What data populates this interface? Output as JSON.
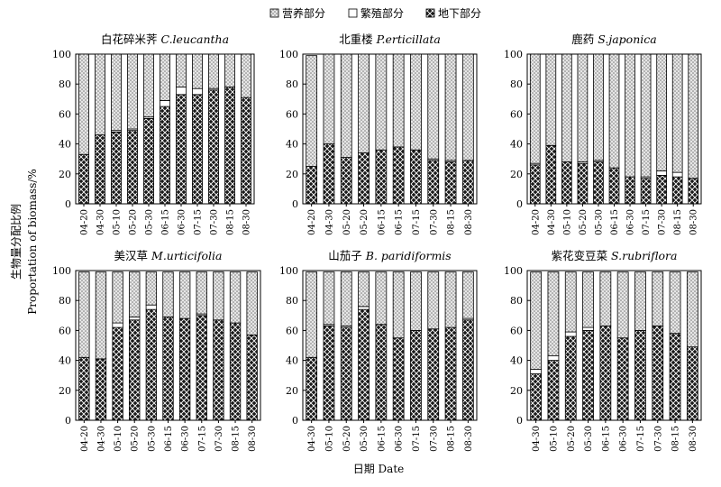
{
  "legend": {
    "items": [
      {
        "label": "营养部分",
        "pattern": "veg"
      },
      {
        "label": "繁殖部分",
        "pattern": "rep"
      },
      {
        "label": "地下部分",
        "pattern": "und"
      }
    ]
  },
  "axes": {
    "ylabel_cn": "生物量分配比例",
    "ylabel_en": "Proportation of biomass/%",
    "xlabel": "日期 Date"
  },
  "colors": {
    "stroke": "#000000",
    "background": "#ffffff",
    "underground_fill": "#1a1a1a",
    "vegetative_fill": "#d9d9d9"
  },
  "chart_data": [
    {
      "type": "bar",
      "stacked": true,
      "title_cn": "白花碎米荠",
      "title_en": "C.leucantha",
      "categories": [
        "04-20",
        "04-30",
        "05-10",
        "05-20",
        "05-30",
        "06-15",
        "06-30",
        "07-15",
        "07-30",
        "08-15",
        "08-30"
      ],
      "ylim": [
        0,
        100
      ],
      "yticks": [
        0,
        20,
        40,
        60,
        80,
        100
      ],
      "series": [
        {
          "name": "地下部分",
          "values": [
            33,
            46,
            48,
            49,
            57,
            65,
            73,
            73,
            76,
            78,
            71
          ]
        },
        {
          "name": "繁殖部分",
          "values": [
            0,
            0,
            1,
            1,
            1,
            4,
            5,
            4,
            1,
            0,
            0
          ]
        },
        {
          "name": "营养部分",
          "values": [
            67,
            54,
            51,
            50,
            42,
            31,
            22,
            23,
            23,
            22,
            29
          ]
        }
      ]
    },
    {
      "type": "bar",
      "stacked": true,
      "title_cn": "北重楼",
      "title_en": "P.erticillata",
      "categories": [
        "04-20",
        "04-30",
        "05-20",
        "05-20",
        "06-15",
        "06-15",
        "07-15",
        "07-30",
        "08-15",
        "08-30"
      ],
      "ylim": [
        0,
        100
      ],
      "yticks": [
        0,
        20,
        40,
        60,
        80,
        100
      ],
      "series": [
        {
          "name": "地下部分",
          "values": [
            25,
            40,
            31,
            34,
            36,
            38,
            36,
            29,
            28,
            29
          ]
        },
        {
          "name": "繁殖部分",
          "values": [
            0,
            0,
            0,
            0,
            0,
            0,
            0,
            1,
            1,
            0
          ]
        },
        {
          "name": "营养部分",
          "values": [
            74,
            60,
            69,
            66,
            64,
            62,
            64,
            70,
            71,
            71
          ]
        }
      ]
    },
    {
      "type": "bar",
      "stacked": true,
      "title_cn": "鹿药",
      "title_en": "S.japonica",
      "categories": [
        "04-20",
        "04-30",
        "05-10",
        "05-20",
        "05-30",
        "06-15",
        "06-30",
        "07-15",
        "07-30",
        "08-15",
        "08-30"
      ],
      "ylim": [
        0,
        100
      ],
      "yticks": [
        0,
        20,
        40,
        60,
        80,
        100
      ],
      "series": [
        {
          "name": "地下部分",
          "values": [
            26,
            39,
            28,
            27,
            28,
            24,
            18,
            17,
            19,
            18,
            17
          ]
        },
        {
          "name": "繁殖部分",
          "values": [
            1,
            0,
            0,
            1,
            1,
            0,
            0,
            1,
            3,
            3,
            0
          ]
        },
        {
          "name": "营养部分",
          "values": [
            73,
            61,
            72,
            72,
            71,
            76,
            82,
            82,
            78,
            79,
            83
          ]
        }
      ]
    },
    {
      "type": "bar",
      "stacked": true,
      "title_cn": "美汉草",
      "title_en": "M.urticifolia",
      "categories": [
        "04-20",
        "04-30",
        "05-10",
        "05-20",
        "05-30",
        "06-15",
        "06-30",
        "07-15",
        "07-30",
        "08-15",
        "08-30"
      ],
      "ylim": [
        0,
        100
      ],
      "yticks": [
        0,
        20,
        40,
        60,
        80,
        100
      ],
      "series": [
        {
          "name": "地下部分",
          "values": [
            42,
            41,
            62,
            67,
            74,
            69,
            68,
            70,
            67,
            65,
            57
          ]
        },
        {
          "name": "繁殖部分",
          "values": [
            0,
            0,
            3,
            2,
            3,
            0,
            0,
            1,
            0,
            0,
            0
          ]
        },
        {
          "name": "营养部分",
          "values": [
            57,
            58,
            34,
            30,
            22,
            30,
            31,
            28,
            32,
            34,
            42
          ]
        }
      ]
    },
    {
      "type": "bar",
      "stacked": true,
      "title_cn": "山茄子",
      "title_en": "B. paridiformis",
      "categories": [
        "04-30",
        "05-10",
        "05-20",
        "05-30",
        "06-15",
        "06-30",
        "07-15",
        "07-30",
        "08-15",
        "08-30"
      ],
      "ylim": [
        0,
        100
      ],
      "yticks": [
        0,
        20,
        40,
        60,
        80,
        100
      ],
      "series": [
        {
          "name": "地下部分",
          "values": [
            42,
            63,
            62,
            74,
            64,
            55,
            60,
            61,
            62,
            67
          ]
        },
        {
          "name": "繁殖部分",
          "values": [
            0,
            1,
            1,
            2,
            0,
            0,
            0,
            0,
            0,
            1
          ]
        },
        {
          "name": "营养部分",
          "values": [
            57,
            35,
            36,
            23,
            35,
            44,
            39,
            38,
            37,
            31
          ]
        }
      ]
    },
    {
      "type": "bar",
      "stacked": true,
      "title_cn": "紫花变豆菜",
      "title_en": "S.rubriflora",
      "categories": [
        "04-30",
        "05-10",
        "05-20",
        "05-30",
        "06-15",
        "06-30",
        "07-15",
        "07-30",
        "08-15",
        "08-30"
      ],
      "ylim": [
        0,
        100
      ],
      "yticks": [
        0,
        20,
        40,
        60,
        80,
        100
      ],
      "series": [
        {
          "name": "地下部分",
          "values": [
            31,
            40,
            56,
            60,
            63,
            55,
            60,
            63,
            58,
            49
          ]
        },
        {
          "name": "繁殖部分",
          "values": [
            3,
            3,
            3,
            2,
            0,
            0,
            0,
            0,
            0,
            0
          ]
        },
        {
          "name": "营养部分",
          "values": [
            65,
            56,
            40,
            37,
            36,
            44,
            39,
            36,
            41,
            50
          ]
        }
      ]
    }
  ]
}
